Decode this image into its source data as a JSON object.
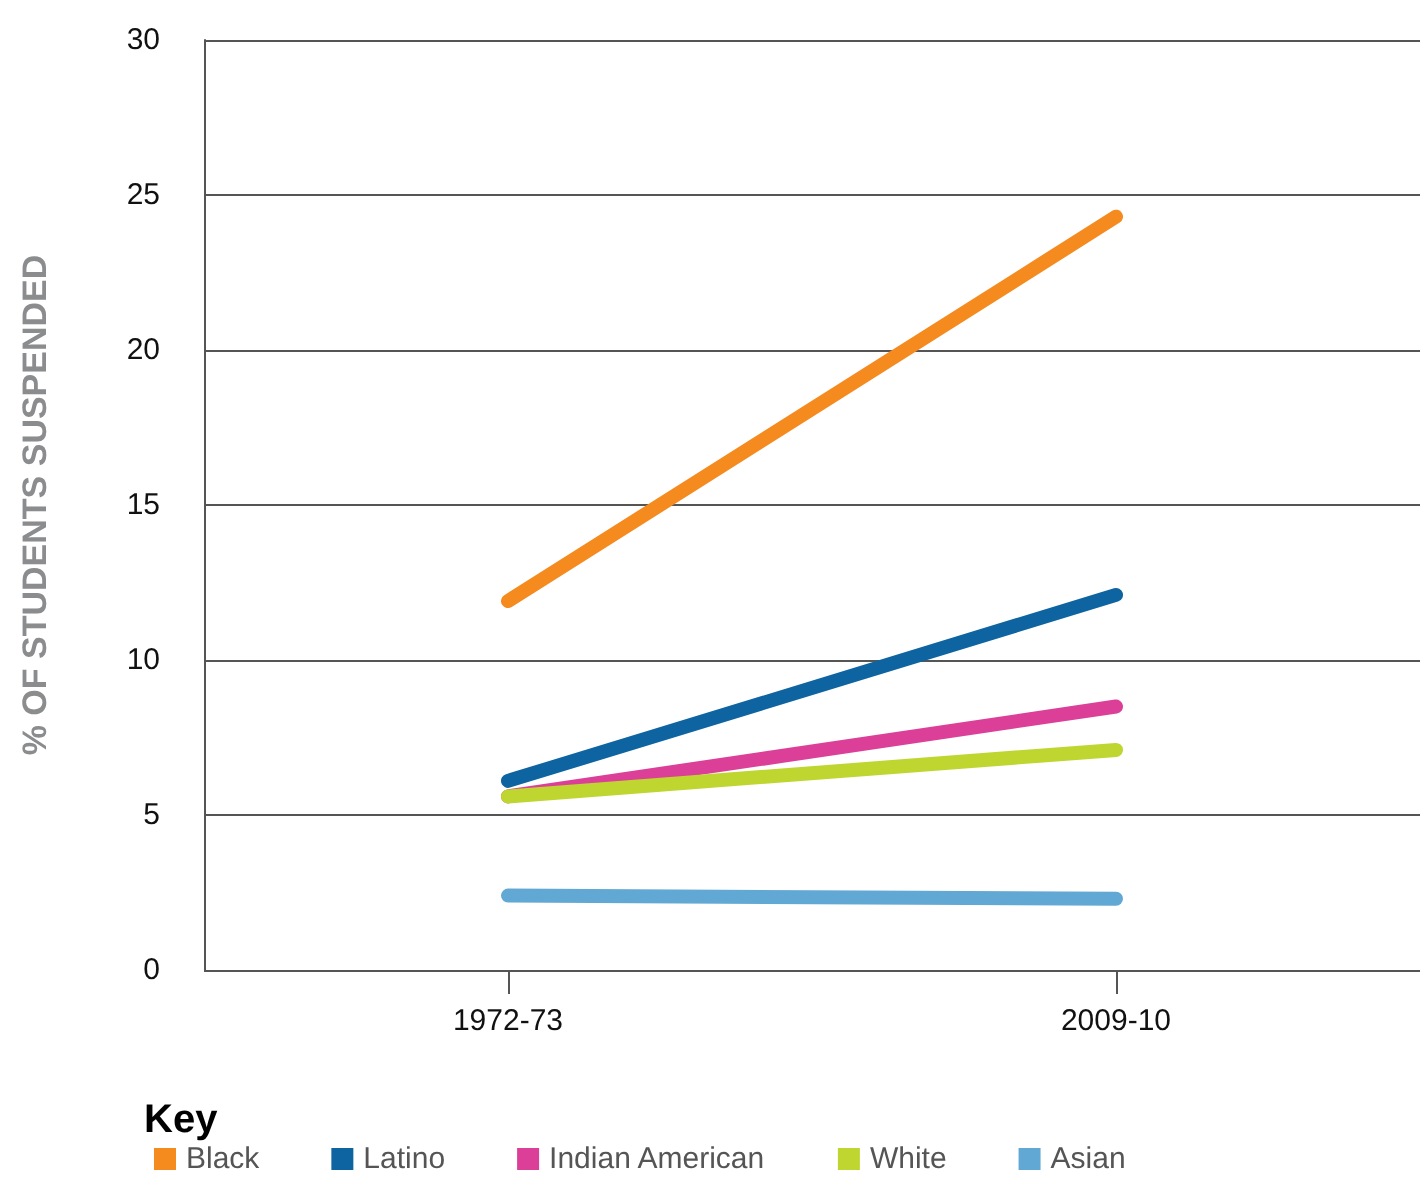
{
  "chart_data": {
    "type": "line",
    "ylabel": "% OF STUDENTS SUSPENDED",
    "legend_title": "Key",
    "categories": [
      "1972-73",
      "2009-10"
    ],
    "series": [
      {
        "name": "Black",
        "color": "#f58a1f",
        "values": [
          11.9,
          24.3
        ]
      },
      {
        "name": "Latino",
        "color": "#0e64a0",
        "values": [
          6.1,
          12.1
        ]
      },
      {
        "name": "Indian American",
        "color": "#dc3f98",
        "values": [
          5.6,
          8.5
        ]
      },
      {
        "name": "White",
        "color": "#bfd630",
        "values": [
          5.6,
          7.1
        ]
      },
      {
        "name": "Asian",
        "color": "#62a8d4",
        "values": [
          2.4,
          2.3
        ]
      }
    ],
    "ylim": [
      0,
      30
    ],
    "yticks": [
      0,
      5,
      10,
      15,
      20,
      25,
      30
    ],
    "grid": "y",
    "legend": "bottom",
    "marker": "none",
    "line_style": "solid"
  }
}
